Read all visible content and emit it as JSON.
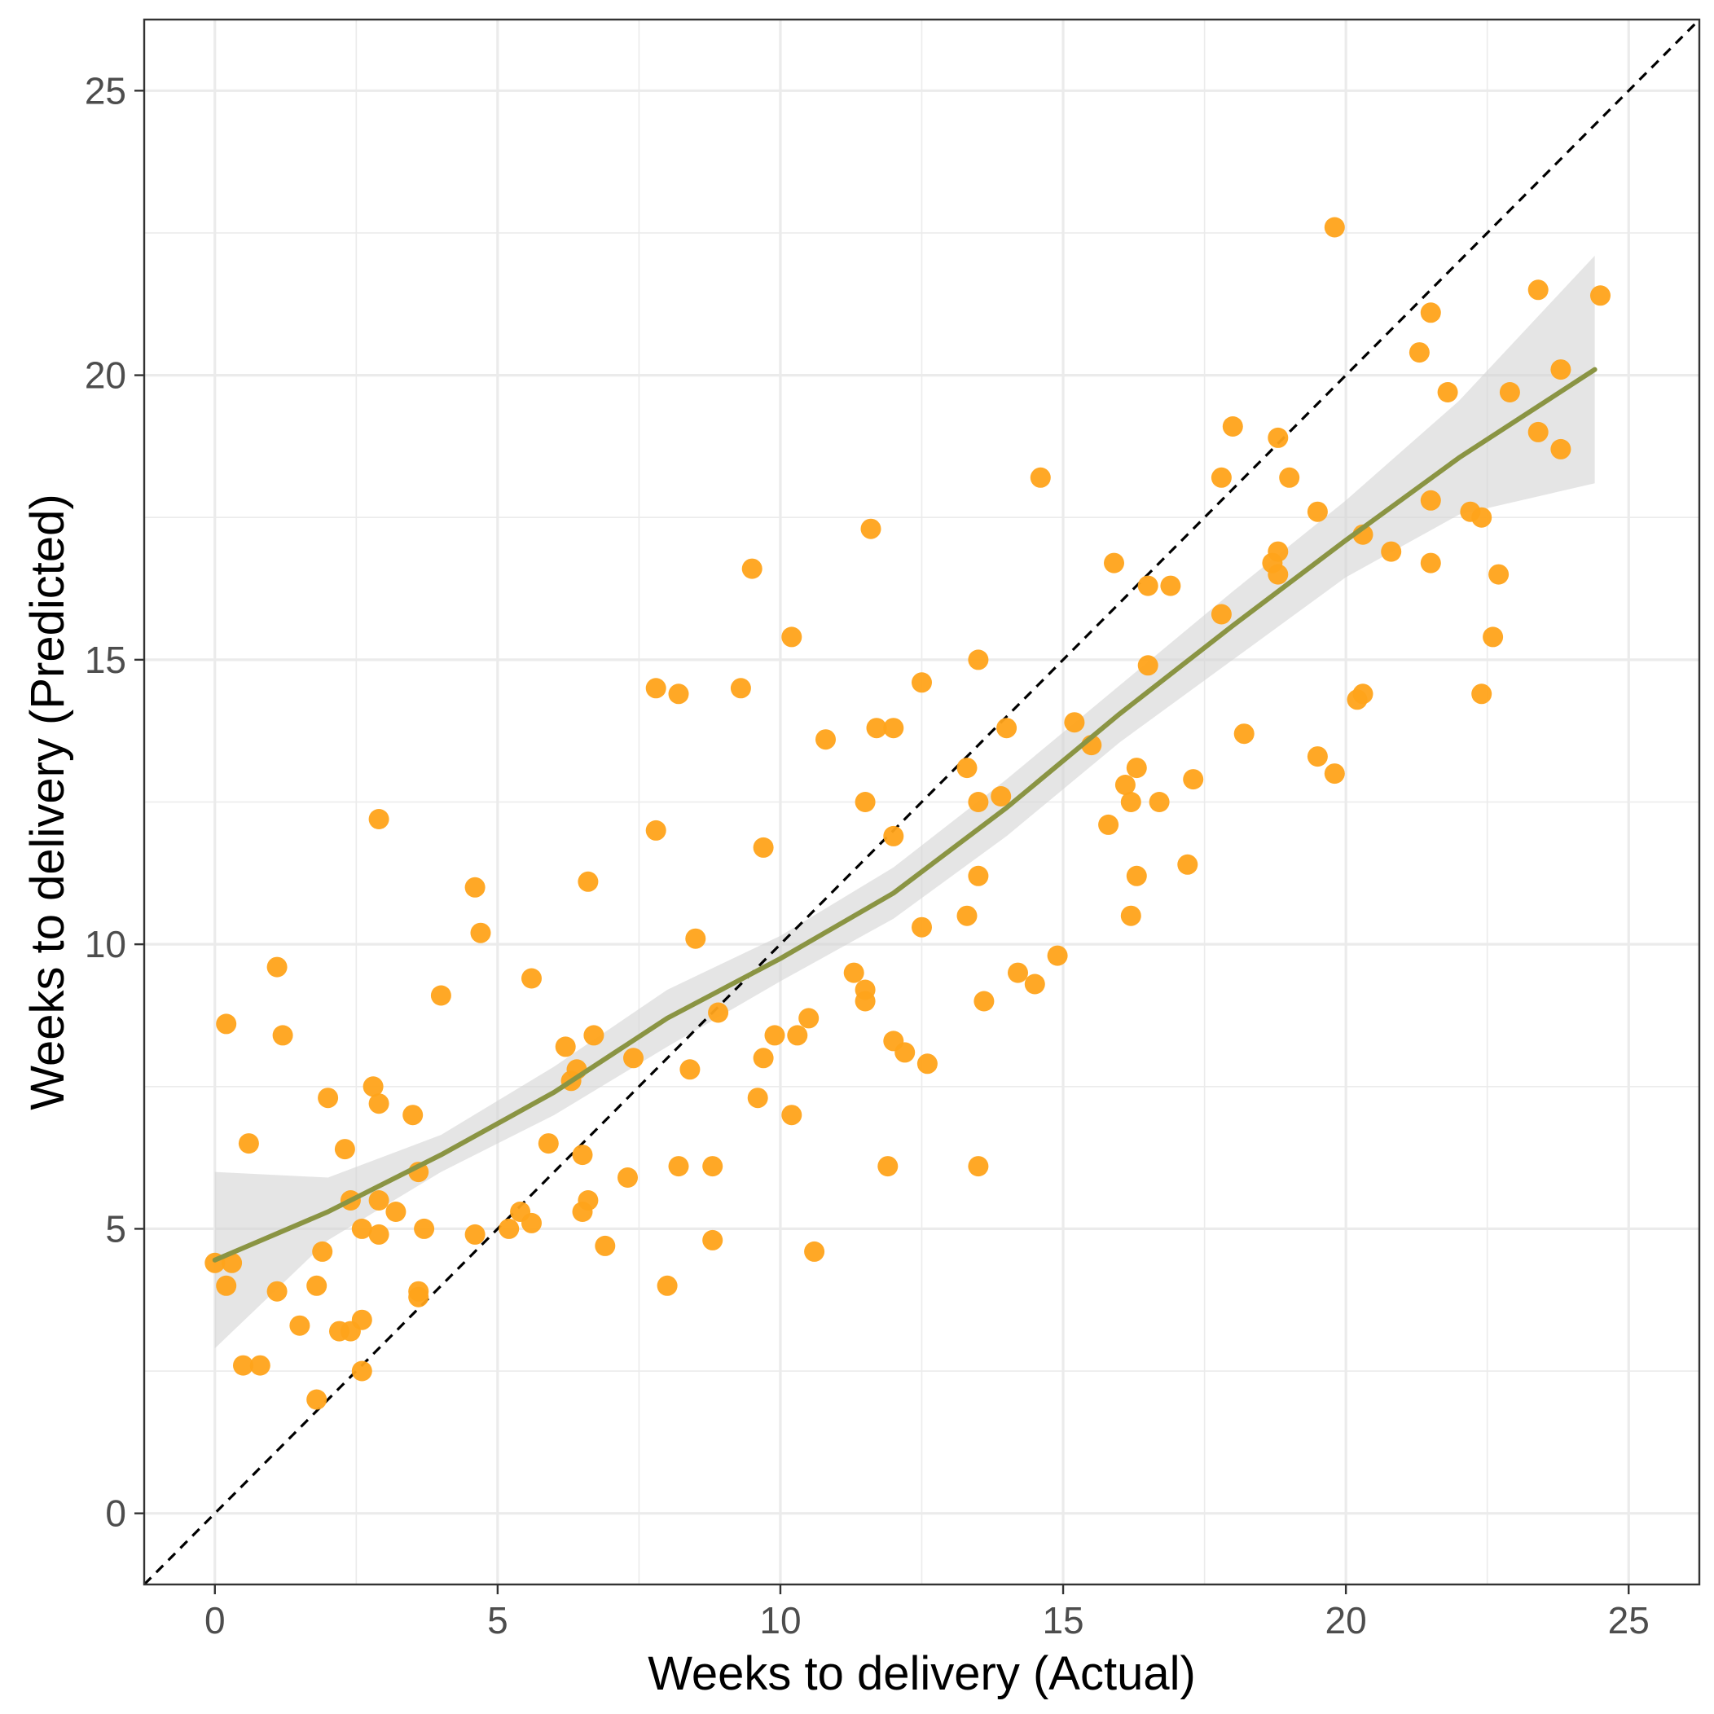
{
  "chart_data": {
    "type": "scatter",
    "title": "",
    "xlabel": "Weeks to delivery (Actual)",
    "ylabel": "Weeks to delivery (Predicted)",
    "xlim": [
      -1.25,
      26.25
    ],
    "ylim": [
      -1.25,
      26.25
    ],
    "x_ticks": [
      0,
      5,
      10,
      15,
      20,
      25
    ],
    "y_ticks": [
      0,
      5,
      10,
      15,
      20,
      25
    ],
    "x_tick_labels": [
      "0",
      "5",
      "10",
      "15",
      "20",
      "25"
    ],
    "y_tick_labels": [
      "0",
      "5",
      "10",
      "15",
      "20",
      "25"
    ],
    "grid": true,
    "reference_line": {
      "slope": 1,
      "intercept": 0,
      "style": "dashed"
    },
    "colors": {
      "points": "#FFA31A",
      "smooth_line": "#8A9443",
      "confidence_band": "#D3D3D3",
      "reference_line": "#000000",
      "grid": "#EBEBEB",
      "panel_border": "#333333"
    },
    "points": [
      [
        0.0,
        4.4
      ],
      [
        0.2,
        8.6
      ],
      [
        0.2,
        4.0
      ],
      [
        0.3,
        4.4
      ],
      [
        0.5,
        2.6
      ],
      [
        0.6,
        6.5
      ],
      [
        0.8,
        2.6
      ],
      [
        1.1,
        9.6
      ],
      [
        1.1,
        3.9
      ],
      [
        1.2,
        8.4
      ],
      [
        1.5,
        3.3
      ],
      [
        1.8,
        2.0
      ],
      [
        1.8,
        4.0
      ],
      [
        1.9,
        4.6
      ],
      [
        2.0,
        7.3
      ],
      [
        2.2,
        3.2
      ],
      [
        2.3,
        6.4
      ],
      [
        2.4,
        3.2
      ],
      [
        2.4,
        5.5
      ],
      [
        2.6,
        5.0
      ],
      [
        2.6,
        3.4
      ],
      [
        2.6,
        2.5
      ],
      [
        2.8,
        7.5
      ],
      [
        2.9,
        7.2
      ],
      [
        2.9,
        5.5
      ],
      [
        2.9,
        4.9
      ],
      [
        2.9,
        12.2
      ],
      [
        3.2,
        5.3
      ],
      [
        3.5,
        7.0
      ],
      [
        3.6,
        6.0
      ],
      [
        3.6,
        3.9
      ],
      [
        3.6,
        3.8
      ],
      [
        3.7,
        5.0
      ],
      [
        4.0,
        9.1
      ],
      [
        4.6,
        11.0
      ],
      [
        4.6,
        4.9
      ],
      [
        4.7,
        10.2
      ],
      [
        5.2,
        5.0
      ],
      [
        5.4,
        5.3
      ],
      [
        5.6,
        5.1
      ],
      [
        5.6,
        9.4
      ],
      [
        5.9,
        6.5
      ],
      [
        6.2,
        8.2
      ],
      [
        6.3,
        7.6
      ],
      [
        6.4,
        7.8
      ],
      [
        6.5,
        6.3
      ],
      [
        6.5,
        5.3
      ],
      [
        6.6,
        5.5
      ],
      [
        6.6,
        11.1
      ],
      [
        6.7,
        8.4
      ],
      [
        6.9,
        4.7
      ],
      [
        7.3,
        5.9
      ],
      [
        7.4,
        8.0
      ],
      [
        7.8,
        12.0
      ],
      [
        7.8,
        14.5
      ],
      [
        8.0,
        4.0
      ],
      [
        8.2,
        14.4
      ],
      [
        8.2,
        6.1
      ],
      [
        8.4,
        7.8
      ],
      [
        8.5,
        10.1
      ],
      [
        8.8,
        6.1
      ],
      [
        8.8,
        4.8
      ],
      [
        8.9,
        8.8
      ],
      [
        9.3,
        14.5
      ],
      [
        9.5,
        16.6
      ],
      [
        9.6,
        7.3
      ],
      [
        9.7,
        11.7
      ],
      [
        9.7,
        8.0
      ],
      [
        9.9,
        8.4
      ],
      [
        10.2,
        15.4
      ],
      [
        10.2,
        7.0
      ],
      [
        10.3,
        8.4
      ],
      [
        10.5,
        8.7
      ],
      [
        10.6,
        4.6
      ],
      [
        10.8,
        13.6
      ],
      [
        11.3,
        9.5
      ],
      [
        11.5,
        9.2
      ],
      [
        11.5,
        9.0
      ],
      [
        11.5,
        12.5
      ],
      [
        11.6,
        17.3
      ],
      [
        11.7,
        13.8
      ],
      [
        11.9,
        6.1
      ],
      [
        12.0,
        13.8
      ],
      [
        12.0,
        11.9
      ],
      [
        12.0,
        8.3
      ],
      [
        12.2,
        8.1
      ],
      [
        12.5,
        10.3
      ],
      [
        12.5,
        14.6
      ],
      [
        12.6,
        7.9
      ],
      [
        13.3,
        13.1
      ],
      [
        13.3,
        10.5
      ],
      [
        13.5,
        15.0
      ],
      [
        13.5,
        12.5
      ],
      [
        13.5,
        11.2
      ],
      [
        13.5,
        6.1
      ],
      [
        13.6,
        9.0
      ],
      [
        13.9,
        12.6
      ],
      [
        14.0,
        13.8
      ],
      [
        14.2,
        9.5
      ],
      [
        14.5,
        9.3
      ],
      [
        14.6,
        18.2
      ],
      [
        14.9,
        9.8
      ],
      [
        15.2,
        13.9
      ],
      [
        15.5,
        13.5
      ],
      [
        15.8,
        12.1
      ],
      [
        15.9,
        16.7
      ],
      [
        16.1,
        12.8
      ],
      [
        16.2,
        12.5
      ],
      [
        16.2,
        10.5
      ],
      [
        16.3,
        13.1
      ],
      [
        16.3,
        11.2
      ],
      [
        16.5,
        16.3
      ],
      [
        16.5,
        14.9
      ],
      [
        16.7,
        12.5
      ],
      [
        16.9,
        16.3
      ],
      [
        17.2,
        11.4
      ],
      [
        17.3,
        12.9
      ],
      [
        17.8,
        18.2
      ],
      [
        17.8,
        15.8
      ],
      [
        18.0,
        19.1
      ],
      [
        18.2,
        13.7
      ],
      [
        18.7,
        16.7
      ],
      [
        18.8,
        18.9
      ],
      [
        18.8,
        16.9
      ],
      [
        18.8,
        16.5
      ],
      [
        19.0,
        18.2
      ],
      [
        19.5,
        17.6
      ],
      [
        19.5,
        13.3
      ],
      [
        19.8,
        22.6
      ],
      [
        19.8,
        13.0
      ],
      [
        20.2,
        14.3
      ],
      [
        20.3,
        14.4
      ],
      [
        20.3,
        17.2
      ],
      [
        20.8,
        16.9
      ],
      [
        21.3,
        20.4
      ],
      [
        21.5,
        21.1
      ],
      [
        21.5,
        17.8
      ],
      [
        21.5,
        16.7
      ],
      [
        21.8,
        19.7
      ],
      [
        22.2,
        17.6
      ],
      [
        22.4,
        17.5
      ],
      [
        22.4,
        14.4
      ],
      [
        22.6,
        15.4
      ],
      [
        22.7,
        16.5
      ],
      [
        22.9,
        19.7
      ],
      [
        23.4,
        21.5
      ],
      [
        23.4,
        19.0
      ],
      [
        23.8,
        20.1
      ],
      [
        23.8,
        18.7
      ],
      [
        24.5,
        21.4
      ]
    ],
    "smooth": {
      "x": [
        0,
        2,
        4,
        6,
        8,
        10,
        12,
        14,
        16,
        18,
        20,
        22,
        24.4
      ],
      "y": [
        4.45,
        5.3,
        6.3,
        7.4,
        8.7,
        9.75,
        10.9,
        12.4,
        14.05,
        15.6,
        17.1,
        18.55,
        20.1
      ],
      "lower": [
        2.9,
        4.8,
        6.0,
        7.0,
        8.2,
        9.35,
        10.45,
        11.9,
        13.55,
        15.0,
        16.45,
        17.55,
        18.1
      ],
      "upper": [
        6.0,
        5.9,
        6.65,
        7.85,
        9.2,
        10.15,
        11.35,
        12.9,
        14.55,
        16.2,
        17.8,
        19.55,
        22.1
      ]
    }
  }
}
